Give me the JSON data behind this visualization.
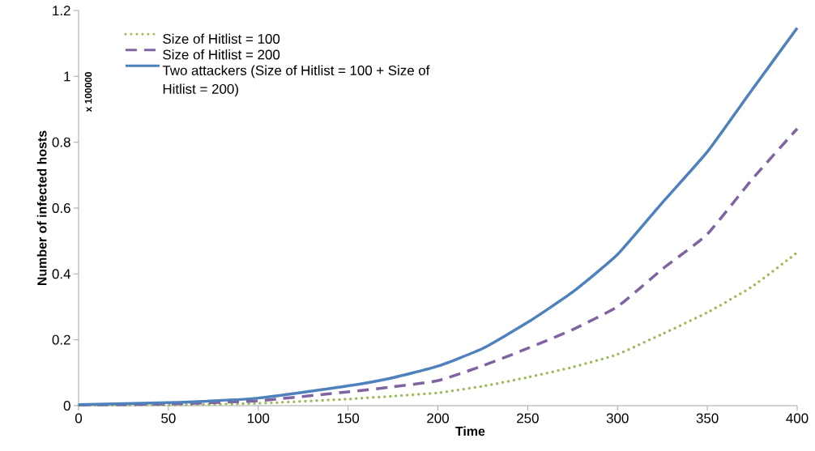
{
  "chart_data": {
    "type": "line",
    "xlabel": "Time",
    "ylabel": "Number of infected hosts",
    "annotations": [
      "x 100000"
    ],
    "xlim": [
      0,
      400
    ],
    "ylim": [
      0,
      1.2
    ],
    "xticks": [
      0,
      50,
      100,
      150,
      200,
      250,
      300,
      350,
      400
    ],
    "yticks": [
      0,
      0.2,
      0.4,
      0.6,
      0.8,
      1,
      1.2
    ],
    "grid": false,
    "legend": "top left",
    "marker": "none",
    "x": [
      0,
      50,
      100,
      150,
      175,
      200,
      225,
      250,
      275,
      300,
      325,
      350,
      375,
      400
    ],
    "series": [
      {
        "name": "Size of Hitlist = 100",
        "color": "#9bbb59",
        "line_style": "dotted",
        "values": [
          0.001,
          0.002,
          0.007,
          0.02,
          0.029,
          0.039,
          0.059,
          0.086,
          0.117,
          0.156,
          0.218,
          0.283,
          0.362,
          0.465
        ]
      },
      {
        "name": "Size of Hitlist = 200",
        "color": "#8064a2",
        "line_style": "dashed",
        "values": [
          0.002,
          0.005,
          0.015,
          0.042,
          0.057,
          0.076,
          0.121,
          0.174,
          0.231,
          0.301,
          0.415,
          0.521,
          0.688,
          0.841
        ]
      },
      {
        "name": "Two attackers (Size of Hitlist = 100 + Size of Hitlist = 200)",
        "color": "#4f81bd",
        "line_style": "solid",
        "values": [
          0.003,
          0.009,
          0.023,
          0.06,
          0.085,
          0.12,
          0.174,
          0.253,
          0.345,
          0.459,
          0.617,
          0.771,
          0.96,
          1.147
        ]
      }
    ]
  }
}
